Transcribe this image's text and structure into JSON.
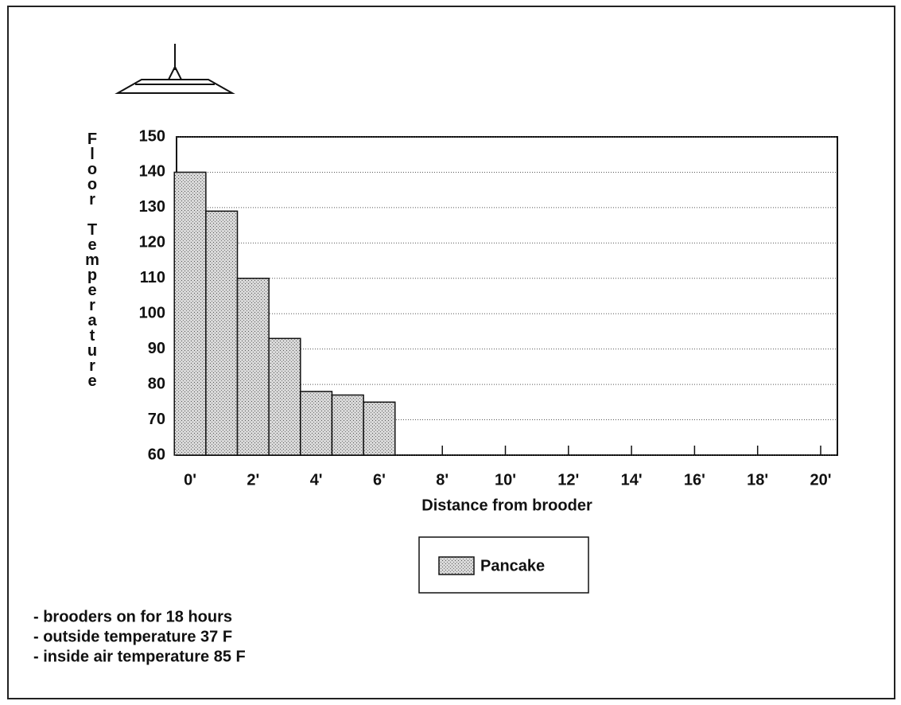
{
  "chart_data": {
    "type": "bar",
    "xlabel": "Distance from brooder",
    "ylabel": "Floor Temperature",
    "x": [
      0,
      1,
      2,
      3,
      4,
      5,
      6
    ],
    "series": [
      {
        "name": "Pancake",
        "color": "#c4c4c4",
        "values": [
          140,
          129,
          110,
          93,
          78,
          77,
          75
        ]
      }
    ],
    "xlim": [
      -0.43,
      20.53
    ],
    "xticks": [
      {
        "value": 0,
        "label": "0'"
      },
      {
        "value": 2,
        "label": "2'"
      },
      {
        "value": 4,
        "label": "4'"
      },
      {
        "value": 6,
        "label": "6'"
      },
      {
        "value": 8,
        "label": "8'"
      },
      {
        "value": 10,
        "label": "10'"
      },
      {
        "value": 12,
        "label": "12'"
      },
      {
        "value": 14,
        "label": "14'"
      },
      {
        "value": 16,
        "label": "16'"
      },
      {
        "value": 18,
        "label": "18'"
      },
      {
        "value": 20,
        "label": "20'"
      }
    ],
    "ylim": [
      60,
      150
    ],
    "yticks": [
      60,
      70,
      80,
      90,
      100,
      110,
      120,
      130,
      140,
      150
    ],
    "grid": true,
    "annotations": [
      "- brooders on for 18 hours",
      "- outside temperature 37 F",
      "- inside air temperature 85 F"
    ]
  }
}
